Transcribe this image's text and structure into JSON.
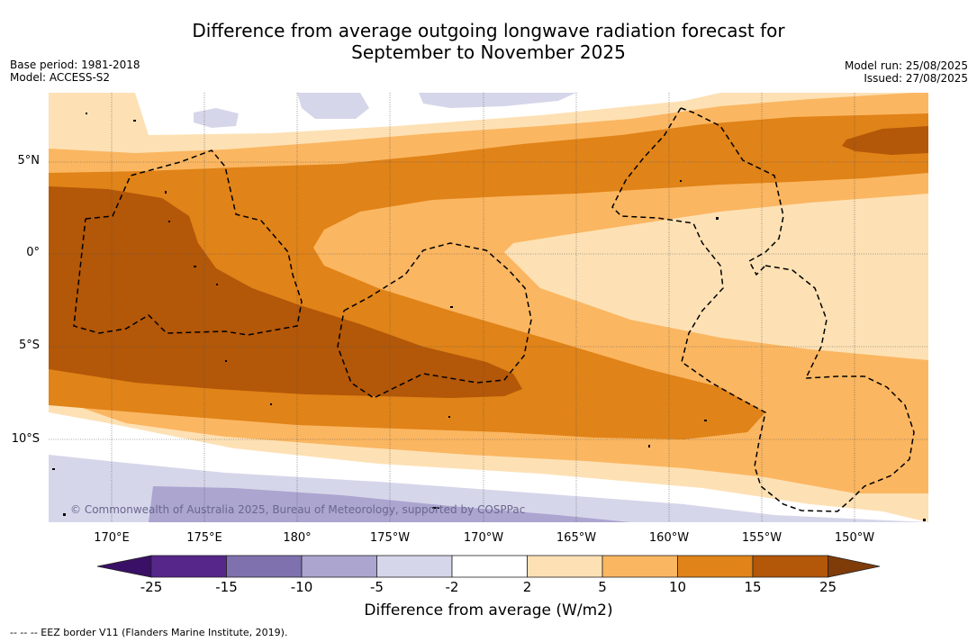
{
  "title_line1": "Difference from average outgoing longwave radiation forecast for",
  "title_line2": "September to November 2025",
  "base_period": "Base period: 1981-2018",
  "model": "Model: ACCESS-S2",
  "model_run": "Model run: 25/08/2025",
  "issued": "Issued: 27/08/2025",
  "latitude_labels": [
    "5°N",
    "0°",
    "5°S",
    "10°S"
  ],
  "longitude_labels": [
    "170°E",
    "175°E",
    "180°",
    "175°W",
    "170°W",
    "165°W",
    "160°W",
    "155°W",
    "150°W"
  ],
  "copyright": "© Commonwealth of Australia 2025, Bureau of Meteorology, supported by COSPPac",
  "colorbar": {
    "label": "Difference from average (W/m2)",
    "ticks": [
      "-25",
      "-15",
      "-10",
      "-5",
      "-2",
      "2",
      "5",
      "10",
      "15",
      "25"
    ],
    "colors": [
      "#3a1066",
      "#56268b",
      "#7f70ae",
      "#aba5d0",
      "#d6d6ea",
      "#ffffff",
      "#fde1b4",
      "#fbb661",
      "#e08318",
      "#b35708",
      "#7f3b08"
    ]
  },
  "footnote": "--  --  -- EEZ border V11 (Flanders Marine Institute, 2019)."
}
